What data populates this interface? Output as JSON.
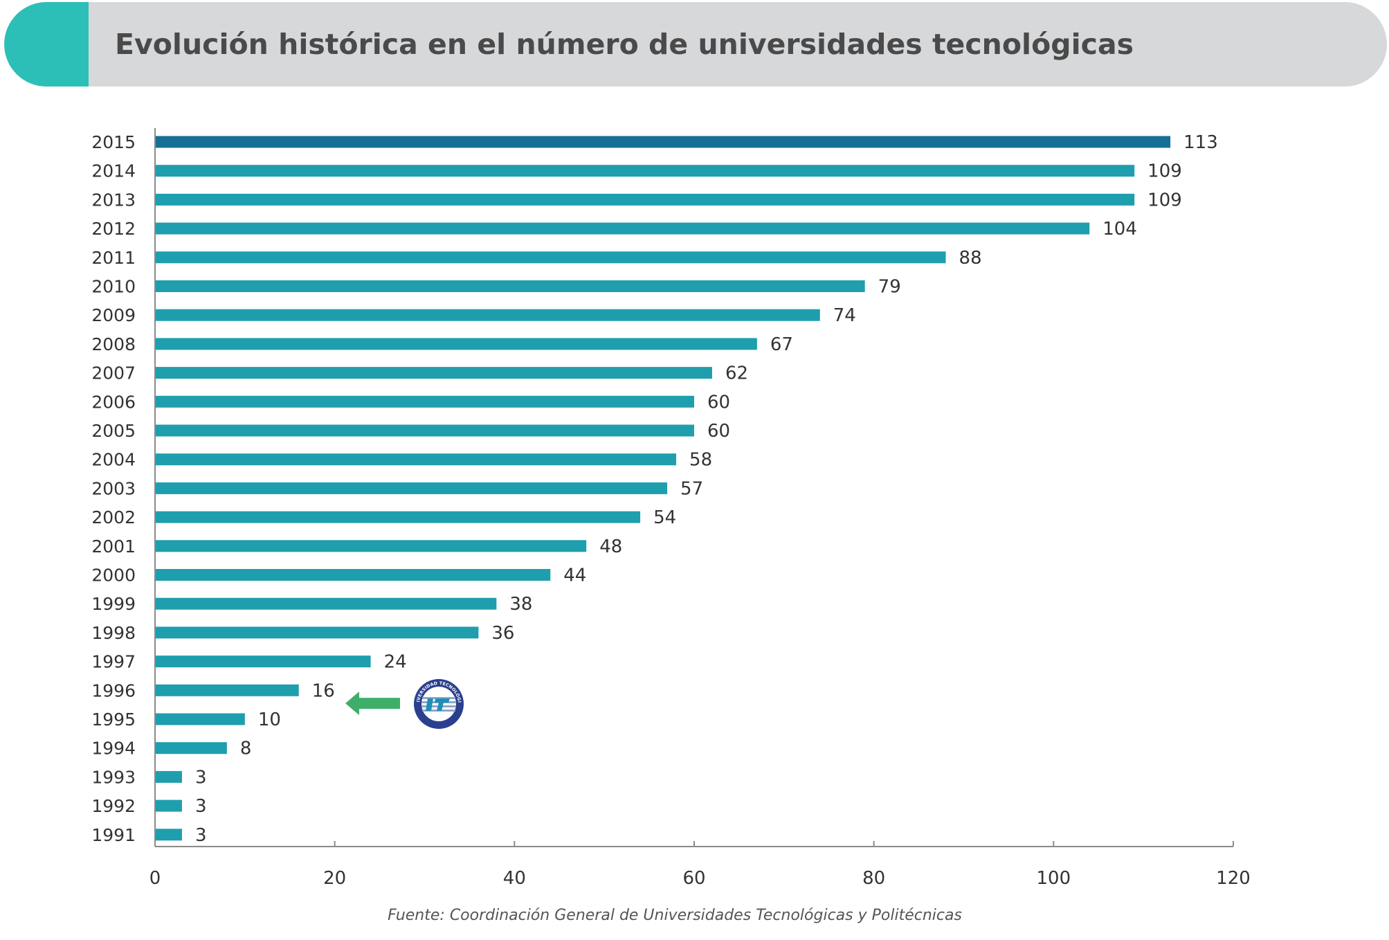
{
  "header": {
    "title": "Evolución histórica en el número de universidades tecnológicas"
  },
  "chart_data": {
    "type": "bar",
    "orientation": "horizontal",
    "categories": [
      "2015",
      "2014",
      "2013",
      "2012",
      "2011",
      "2010",
      "2009",
      "2008",
      "2007",
      "2006",
      "2005",
      "2004",
      "2003",
      "2002",
      "2001",
      "2000",
      "1999",
      "1998",
      "1997",
      "1996",
      "1995",
      "1994",
      "1993",
      "1992",
      "1991"
    ],
    "values": [
      113,
      109,
      109,
      104,
      88,
      79,
      74,
      67,
      62,
      60,
      60,
      58,
      57,
      54,
      48,
      44,
      38,
      36,
      24,
      16,
      10,
      8,
      3,
      3,
      3
    ],
    "xlim": [
      0,
      120
    ],
    "x_ticks": [
      0,
      20,
      40,
      60,
      80,
      100,
      120
    ],
    "data_labels": true,
    "grid": false,
    "colors": {
      "bar": "#1f9eae",
      "highlight_bar": "#166f94",
      "text": "#333333",
      "axis": "#8a8a8a"
    },
    "annotation": {
      "target_category": "1996",
      "arrow_color": "#3fae6a",
      "icon": "universidad-tecnologica-de-tabasco-logo",
      "logo_text": "UNIVERSIDAD TECNOLÓGICA DE TABASCO"
    }
  },
  "footer": {
    "source": "Fuente: Coordinación General de Universidades Tecnológicas y Politécnicas"
  }
}
